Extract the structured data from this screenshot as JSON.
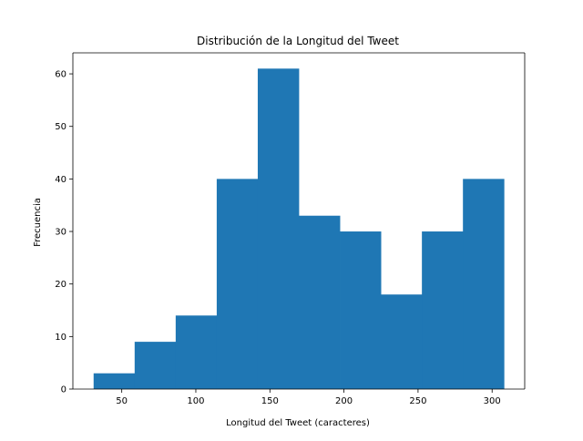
{
  "chart_data": {
    "type": "bar",
    "subtype": "histogram",
    "title": "Distribución de la Longitud del Tweet",
    "xlabel": "Longitud del Tweet (caracteres)",
    "ylabel": "Frecuencia",
    "xlim": [
      17,
      322
    ],
    "ylim": [
      0,
      64
    ],
    "xticks": [
      50,
      100,
      150,
      200,
      250,
      300
    ],
    "yticks": [
      0,
      10,
      20,
      30,
      40,
      50,
      60
    ],
    "bin_edges": [
      31,
      58.7,
      86.4,
      114.1,
      141.8,
      169.5,
      197.2,
      224.9,
      252.6,
      280.3,
      308
    ],
    "values": [
      3,
      9,
      14,
      40,
      61,
      33,
      30,
      18,
      30,
      40
    ],
    "bar_color": "#1f77b4",
    "grid": false,
    "legend": "none"
  }
}
